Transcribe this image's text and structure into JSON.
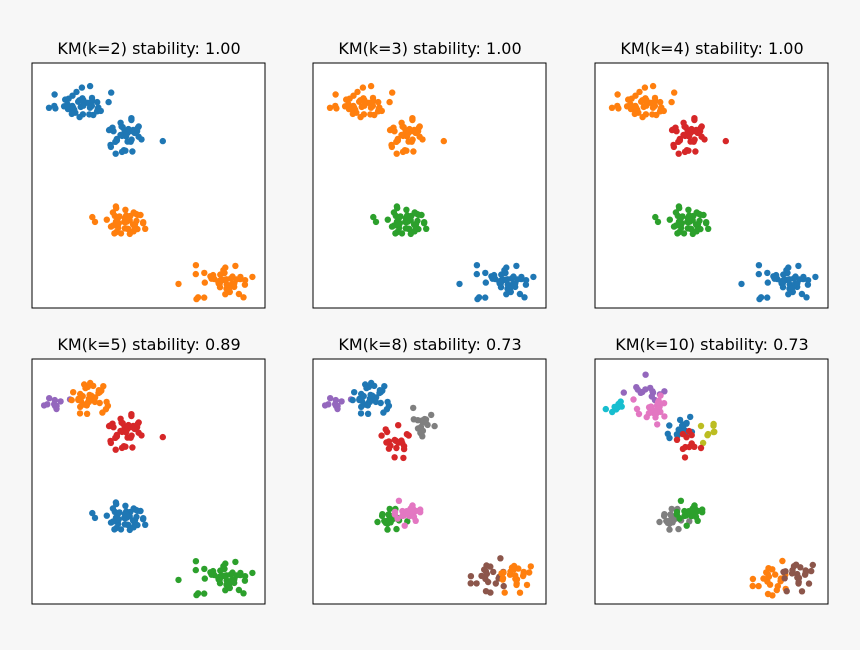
{
  "palette": {
    "blue": "#1f77b4",
    "orange": "#ff7f0e",
    "green": "#2ca02c",
    "red": "#d62728",
    "purple": "#9467bd",
    "brown": "#8c564b",
    "pink": "#e377c2",
    "gray": "#7f7f7f",
    "olive": "#bcbd22",
    "cyan": "#17becf"
  },
  "chart_data": [
    {
      "type": "scatter",
      "title": "KM(k=2) stability: 1.00",
      "k": 2,
      "stability": 1.0,
      "axes": "off",
      "groups": [
        {
          "color": "blue",
          "cx": -8.5,
          "cy": 8.0,
          "sx": 1.0,
          "sy": 0.55,
          "n": 46,
          "seed": 11
        },
        {
          "color": "blue",
          "cx": -5.2,
          "cy": 5.6,
          "sx": 0.9,
          "sy": 0.7,
          "n": 38,
          "seed": 12
        },
        {
          "color": "orange",
          "cx": -5.5,
          "cy": -0.6,
          "sx": 0.85,
          "sy": 0.45,
          "n": 48,
          "seed": 13
        },
        {
          "color": "orange",
          "cx": 1.8,
          "cy": -5.0,
          "sx": 1.1,
          "sy": 0.6,
          "n": 46,
          "seed": 14
        }
      ]
    },
    {
      "type": "scatter",
      "title": "KM(k=3) stability: 1.00",
      "k": 3,
      "stability": 1.0,
      "axes": "off",
      "groups": [
        {
          "color": "orange",
          "cx": -8.5,
          "cy": 8.0,
          "sx": 1.0,
          "sy": 0.55,
          "n": 46,
          "seed": 11
        },
        {
          "color": "orange",
          "cx": -5.2,
          "cy": 5.6,
          "sx": 0.9,
          "sy": 0.7,
          "n": 38,
          "seed": 12
        },
        {
          "color": "green",
          "cx": -5.5,
          "cy": -0.6,
          "sx": 0.85,
          "sy": 0.45,
          "n": 48,
          "seed": 13
        },
        {
          "color": "blue",
          "cx": 1.8,
          "cy": -5.0,
          "sx": 1.1,
          "sy": 0.6,
          "n": 46,
          "seed": 14
        }
      ]
    },
    {
      "type": "scatter",
      "title": "KM(k=4) stability: 1.00",
      "k": 4,
      "stability": 1.0,
      "axes": "off",
      "groups": [
        {
          "color": "orange",
          "cx": -8.5,
          "cy": 8.0,
          "sx": 1.0,
          "sy": 0.55,
          "n": 46,
          "seed": 11
        },
        {
          "color": "red",
          "cx": -5.2,
          "cy": 5.6,
          "sx": 0.9,
          "sy": 0.7,
          "n": 38,
          "seed": 12
        },
        {
          "color": "green",
          "cx": -5.5,
          "cy": -0.6,
          "sx": 0.85,
          "sy": 0.45,
          "n": 48,
          "seed": 13
        },
        {
          "color": "blue",
          "cx": 1.8,
          "cy": -5.0,
          "sx": 1.1,
          "sy": 0.6,
          "n": 46,
          "seed": 14
        }
      ]
    },
    {
      "type": "scatter",
      "title": "KM(k=5) stability: 0.89",
      "k": 5,
      "stability": 0.89,
      "axes": "off",
      "groups": [
        {
          "color": "purple",
          "cx": -10.2,
          "cy": 7.6,
          "sx": 0.5,
          "sy": 0.45,
          "n": 10,
          "seed": 21
        },
        {
          "color": "orange",
          "cx": -8.0,
          "cy": 8.0,
          "sx": 0.75,
          "sy": 0.55,
          "n": 36,
          "seed": 22
        },
        {
          "color": "red",
          "cx": -5.2,
          "cy": 5.6,
          "sx": 0.9,
          "sy": 0.7,
          "n": 38,
          "seed": 12
        },
        {
          "color": "blue",
          "cx": -5.5,
          "cy": -0.6,
          "sx": 0.85,
          "sy": 0.45,
          "n": 48,
          "seed": 13
        },
        {
          "color": "green",
          "cx": 1.8,
          "cy": -5.0,
          "sx": 1.1,
          "sy": 0.6,
          "n": 46,
          "seed": 14
        }
      ]
    },
    {
      "type": "scatter",
      "title": "KM(k=8) stability: 0.73",
      "k": 8,
      "stability": 0.73,
      "axes": "off",
      "groups": [
        {
          "color": "purple",
          "cx": -10.2,
          "cy": 7.6,
          "sx": 0.5,
          "sy": 0.45,
          "n": 10,
          "seed": 21
        },
        {
          "color": "blue",
          "cx": -8.0,
          "cy": 8.0,
          "sx": 0.75,
          "sy": 0.55,
          "n": 36,
          "seed": 22
        },
        {
          "color": "gray",
          "cx": -4.0,
          "cy": 6.2,
          "sx": 0.55,
          "sy": 0.5,
          "n": 16,
          "seed": 31
        },
        {
          "color": "red",
          "cx": -5.9,
          "cy": 5.0,
          "sx": 0.6,
          "sy": 0.6,
          "n": 20,
          "seed": 32
        },
        {
          "color": "green",
          "cx": -6.4,
          "cy": -0.8,
          "sx": 0.5,
          "sy": 0.45,
          "n": 22,
          "seed": 33
        },
        {
          "color": "pink",
          "cx": -4.9,
          "cy": -0.4,
          "sx": 0.5,
          "sy": 0.4,
          "n": 24,
          "seed": 34
        },
        {
          "color": "brown",
          "cx": 0.8,
          "cy": -5.0,
          "sx": 0.7,
          "sy": 0.55,
          "n": 20,
          "seed": 35
        },
        {
          "color": "orange",
          "cx": 2.8,
          "cy": -4.9,
          "sx": 0.7,
          "sy": 0.55,
          "n": 24,
          "seed": 36
        }
      ]
    },
    {
      "type": "scatter",
      "title": "KM(k=10) stability: 0.73",
      "k": 10,
      "stability": 0.73,
      "axes": "off",
      "groups": [
        {
          "color": "cyan",
          "cx": -10.5,
          "cy": 7.5,
          "sx": 0.45,
          "sy": 0.25,
          "n": 8,
          "seed": 41
        },
        {
          "color": "purple",
          "cx": -8.2,
          "cy": 8.8,
          "sx": 0.7,
          "sy": 0.4,
          "n": 14,
          "seed": 42
        },
        {
          "color": "pink",
          "cx": -7.6,
          "cy": 7.3,
          "sx": 0.75,
          "sy": 0.45,
          "n": 24,
          "seed": 43
        },
        {
          "color": "olive",
          "cx": -3.6,
          "cy": 5.6,
          "sx": 0.45,
          "sy": 0.45,
          "n": 8,
          "seed": 44
        },
        {
          "color": "blue",
          "cx": -5.6,
          "cy": 5.9,
          "sx": 0.5,
          "sy": 0.4,
          "n": 20,
          "seed": 45
        },
        {
          "color": "red",
          "cx": -5.3,
          "cy": 4.8,
          "sx": 0.45,
          "sy": 0.45,
          "n": 12,
          "seed": 46
        },
        {
          "color": "gray",
          "cx": -6.4,
          "cy": -0.8,
          "sx": 0.5,
          "sy": 0.45,
          "n": 22,
          "seed": 33
        },
        {
          "color": "green",
          "cx": -4.9,
          "cy": -0.4,
          "sx": 0.5,
          "sy": 0.4,
          "n": 24,
          "seed": 34
        },
        {
          "color": "orange",
          "cx": 0.8,
          "cy": -5.2,
          "sx": 0.7,
          "sy": 0.55,
          "n": 22,
          "seed": 35
        },
        {
          "color": "brown",
          "cx": 2.8,
          "cy": -4.8,
          "sx": 0.7,
          "sy": 0.55,
          "n": 22,
          "seed": 36
        }
      ]
    }
  ],
  "data_range": {
    "xlim": [
      -12,
      5
    ],
    "ylim": [
      -7,
      11
    ]
  }
}
